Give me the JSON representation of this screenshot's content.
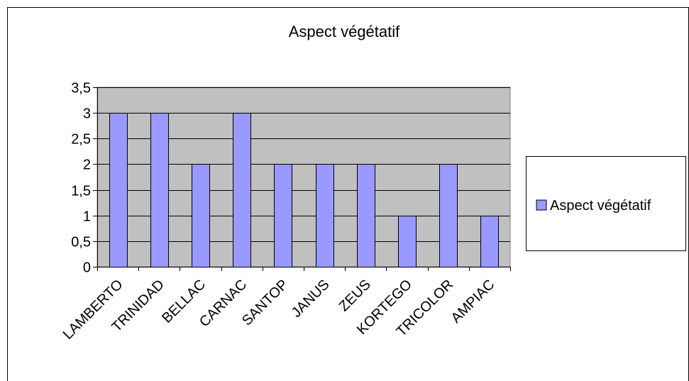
{
  "chart_data": {
    "type": "bar",
    "title": "Aspect végétatif",
    "categories": [
      "LAMBERTO",
      "TRINIDAD",
      "BELLAC",
      "CARNAC",
      "SANTOP",
      "JANUS",
      "ZEUS",
      "KORTEGO",
      "TRICOLOR",
      "AMPIAC"
    ],
    "series": [
      {
        "name": "Aspect végétatif",
        "values": [
          3,
          3,
          2,
          3,
          2,
          2,
          2,
          1,
          2,
          1
        ]
      }
    ],
    "ylim": [
      0,
      3.5
    ],
    "yticks": [
      "0",
      "0,5",
      "1",
      "1,5",
      "2",
      "2,5",
      "3",
      "3,5"
    ],
    "grid": true,
    "legend": "right",
    "colors": {
      "bar_fill": "#9999ff",
      "plot_background": "#c0c0c0",
      "grid": "#000000"
    }
  }
}
